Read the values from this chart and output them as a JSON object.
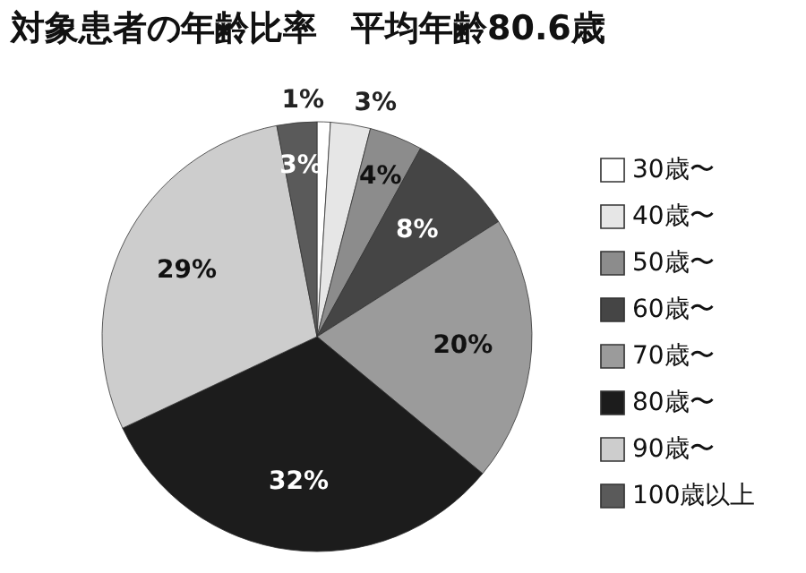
{
  "chart_data": {
    "type": "pie",
    "title": "対象患者の年齢比率　平均年齢80.6歳",
    "categories": [
      "30歳〜",
      "40歳〜",
      "50歳〜",
      "60歳〜",
      "70歳〜",
      "80歳〜",
      "90歳〜",
      "100歳以上"
    ],
    "values": [
      1,
      3,
      4,
      8,
      20,
      32,
      29,
      3
    ],
    "value_labels": [
      "1%",
      "3%",
      "4%",
      "8%",
      "20%",
      "32%",
      "29%",
      "3%"
    ],
    "colors": [
      "#ffffff",
      "#e6e6e6",
      "#8c8c8c",
      "#454545",
      "#9b9b9b",
      "#1c1c1c",
      "#cdcdcd",
      "#5a5a5a"
    ],
    "legend": "right"
  }
}
